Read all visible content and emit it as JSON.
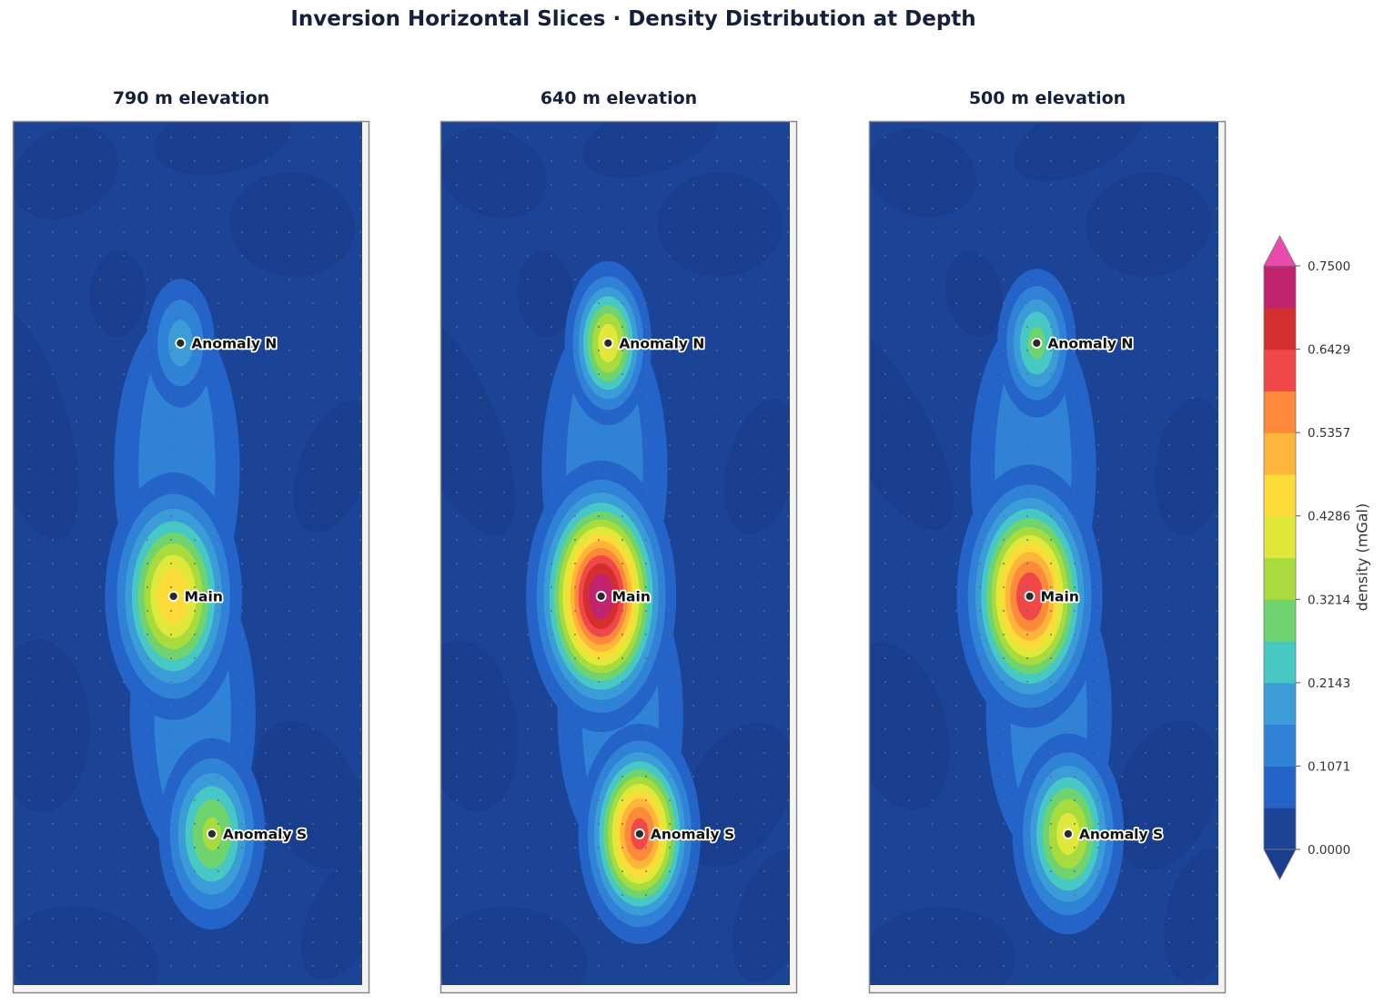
{
  "title": "Inversion Horizontal Slices  ·  Density Distribution at Depth",
  "colorbar": {
    "label": "density  (mGal)",
    "ticks": [
      "0.0000",
      "0.1071",
      "0.2143",
      "0.3214",
      "0.4286",
      "0.5357",
      "0.6429",
      "0.7500"
    ],
    "levels": [
      0,
      0.05357,
      0.10714,
      0.16071,
      0.21429,
      0.26786,
      0.32143,
      0.375,
      0.42857,
      0.48214,
      0.53571,
      0.58929,
      0.64286,
      0.69643,
      0.75
    ],
    "colors": [
      "#1c4496",
      "#2464c8",
      "#2f82d6",
      "#3b9cd8",
      "#48c8c4",
      "#6fd46e",
      "#a8dc3e",
      "#e0e83c",
      "#fddc3a",
      "#fdb63a",
      "#fd8a3a",
      "#f04848",
      "#d42e2e",
      "#c0246e",
      "#dc36a6"
    ],
    "under_color": "#1a3e8e",
    "over_color": "#e84aae",
    "extend": "both"
  },
  "chart_data": {
    "type": "heatmap",
    "panels": [
      {
        "title": "790 m elevation",
        "peaks": {
          "Anomaly N": 0.19,
          "Main": 0.48,
          "Anomaly S": 0.34
        }
      },
      {
        "title": "640 m elevation",
        "peaks": {
          "Anomaly N": 0.42,
          "Main": 0.75,
          "Anomaly S": 0.62
        }
      },
      {
        "title": "500 m elevation",
        "peaks": {
          "Anomaly N": 0.29,
          "Main": 0.64,
          "Anomaly S": 0.41
        }
      }
    ],
    "markers": [
      {
        "label": "Anomaly N"
      },
      {
        "label": "Main"
      },
      {
        "label": "Anomaly S"
      }
    ],
    "station_dots": true,
    "colorbar_range": [
      0.0,
      0.75
    ]
  }
}
